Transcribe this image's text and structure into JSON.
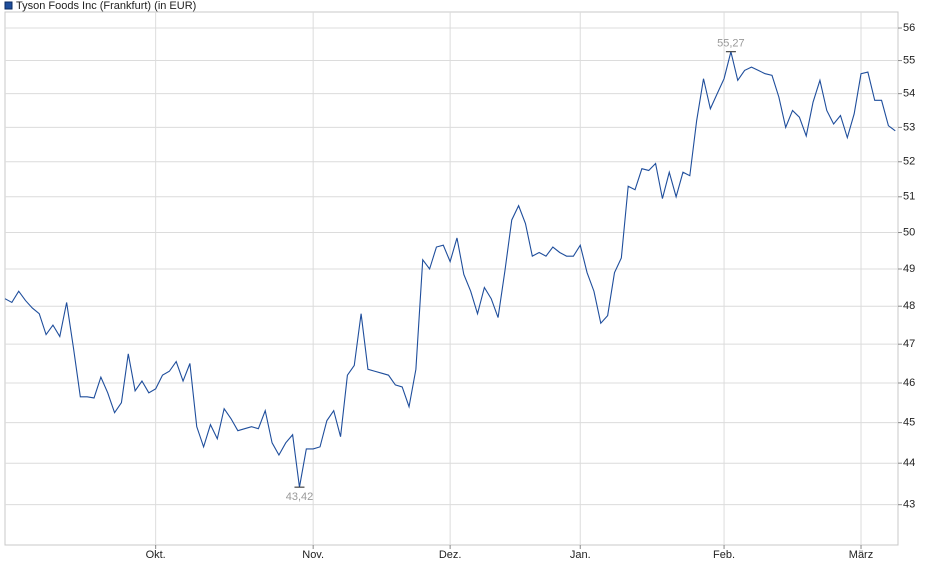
{
  "chart_data": {
    "type": "line",
    "title": "Tyson Foods Inc (Frankfurt) (in EUR)",
    "log_scale": true,
    "grid": true,
    "legend": "top-left",
    "series": [
      {
        "name": "Tyson Foods Inc (Frankfurt) (in EUR)",
        "color": "#1f4e9c",
        "x": [
          0,
          1,
          2,
          3,
          4,
          5,
          6,
          7,
          8,
          9,
          10,
          11,
          12,
          13,
          14,
          15,
          16,
          17,
          18,
          19,
          20,
          21,
          22,
          23,
          24,
          25,
          26,
          27,
          28,
          29,
          30,
          31,
          32,
          33,
          34,
          35,
          36,
          37,
          38,
          39,
          40,
          41,
          42,
          43,
          44,
          45,
          46,
          47,
          48,
          49,
          50,
          51,
          52,
          53,
          54,
          55,
          56,
          57,
          58,
          59,
          60,
          61,
          62,
          63,
          64,
          65,
          66,
          67,
          68,
          69,
          70,
          71,
          72,
          73,
          74,
          75,
          76,
          77,
          78,
          79,
          80,
          81,
          82,
          83,
          84,
          85,
          86,
          87,
          88,
          89,
          90,
          91,
          92,
          93,
          94,
          95,
          96,
          97,
          98,
          99,
          100,
          101,
          102,
          103,
          104,
          105,
          106,
          107,
          108,
          109,
          110,
          111,
          112,
          113,
          114,
          115,
          116,
          117,
          118,
          119,
          120,
          121,
          122,
          123,
          124,
          125,
          126,
          127,
          128,
          129,
          130
        ],
        "values": [
          48.2,
          48.1,
          48.4,
          48.15,
          47.95,
          47.8,
          47.25,
          47.5,
          47.2,
          48.1,
          46.9,
          45.65,
          45.65,
          45.62,
          46.15,
          45.75,
          45.25,
          45.5,
          46.75,
          45.8,
          46.05,
          45.75,
          45.85,
          46.2,
          46.3,
          46.55,
          46.05,
          46.5,
          44.9,
          44.4,
          44.95,
          44.6,
          45.35,
          45.1,
          44.8,
          44.85,
          44.9,
          44.85,
          45.3,
          44.5,
          44.2,
          44.5,
          44.7,
          43.42,
          44.35,
          44.35,
          44.4,
          45.05,
          45.3,
          44.65,
          46.2,
          46.45,
          47.8,
          46.35,
          46.3,
          46.25,
          46.2,
          45.95,
          45.9,
          45.4,
          46.35,
          49.25,
          49.0,
          49.6,
          49.65,
          49.2,
          49.85,
          48.85,
          48.4,
          47.8,
          48.5,
          48.2,
          47.7,
          48.95,
          50.35,
          50.75,
          50.25,
          49.35,
          49.45,
          49.35,
          49.6,
          49.45,
          49.35,
          49.35,
          49.65,
          48.9,
          48.4,
          47.55,
          47.75,
          48.9,
          49.3,
          51.3,
          51.2,
          51.8,
          51.75,
          51.95,
          50.95,
          51.7,
          51.0,
          51.7,
          51.6,
          53.2,
          54.45,
          53.55,
          54.0,
          54.45,
          55.27,
          54.4,
          54.7,
          54.8,
          54.7,
          54.6,
          54.55,
          53.9,
          53.0,
          53.5,
          53.3,
          52.75,
          53.75,
          54.4,
          53.5,
          53.1,
          53.35,
          52.7,
          53.4,
          54.6,
          54.65,
          53.8,
          53.8,
          53.05,
          52.9
        ]
      }
    ],
    "xlim": [
      0,
      130.4
    ],
    "xticks": [
      {
        "value": 22,
        "label": "Okt."
      },
      {
        "value": 45,
        "label": "Nov."
      },
      {
        "value": 65,
        "label": "Dez."
      },
      {
        "value": 84,
        "label": "Jan."
      },
      {
        "value": 105,
        "label": "Feb."
      },
      {
        "value": 125,
        "label": "März"
      }
    ],
    "ylim": [
      42.05,
      56.5
    ],
    "yticks": [
      43,
      44,
      45,
      46,
      47,
      48,
      49,
      50,
      51,
      52,
      53,
      54,
      55,
      56
    ],
    "annotations": [
      {
        "x": 106,
        "value": 55.27,
        "label": "55,27"
      },
      {
        "x": 43,
        "value": 43.42,
        "label": "43,42"
      }
    ]
  }
}
